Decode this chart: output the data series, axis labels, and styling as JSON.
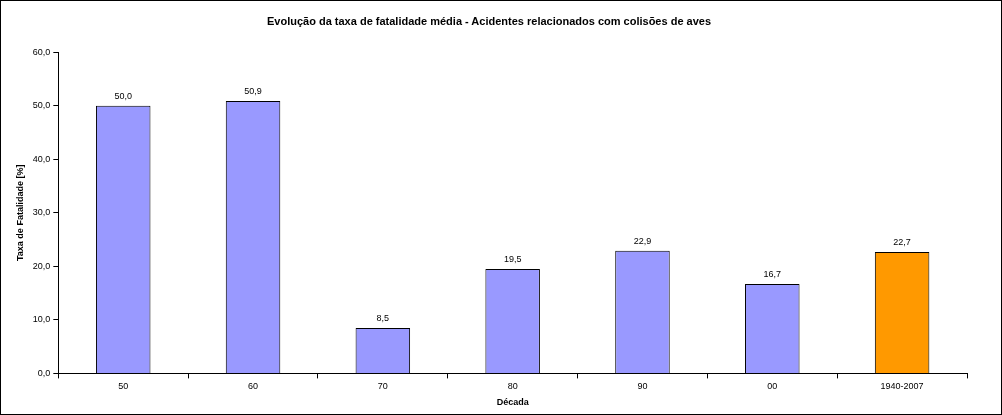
{
  "chart_data": {
    "type": "bar",
    "title": "Evolução da taxa de fatalidade média - Acidentes relacionados com colisões de aves",
    "xlabel": "Década",
    "ylabel": "Taxa de Fatalidade [%]",
    "categories": [
      "50",
      "60",
      "70",
      "80",
      "90",
      "00",
      "1940-2007"
    ],
    "values": [
      50.0,
      50.9,
      8.5,
      19.5,
      22.9,
      16.7,
      22.7
    ],
    "colors": [
      "#9999ff",
      "#9999ff",
      "#9999ff",
      "#9999ff",
      "#9999ff",
      "#9999ff",
      "#ff9900"
    ],
    "value_labels": [
      "50,0",
      "50,9",
      "8,5",
      "19,5",
      "22,9",
      "16,7",
      "22,7"
    ],
    "ylim": [
      0,
      60
    ],
    "yticks": [
      {
        "value": 0,
        "label": "0,0"
      },
      {
        "value": 10,
        "label": "10,0"
      },
      {
        "value": 20,
        "label": "20,0"
      },
      {
        "value": 30,
        "label": "30,0"
      },
      {
        "value": 40,
        "label": "40,0"
      },
      {
        "value": 50,
        "label": "50,0"
      },
      {
        "value": 60,
        "label": "60,0"
      }
    ],
    "grid": false,
    "legend": false
  }
}
